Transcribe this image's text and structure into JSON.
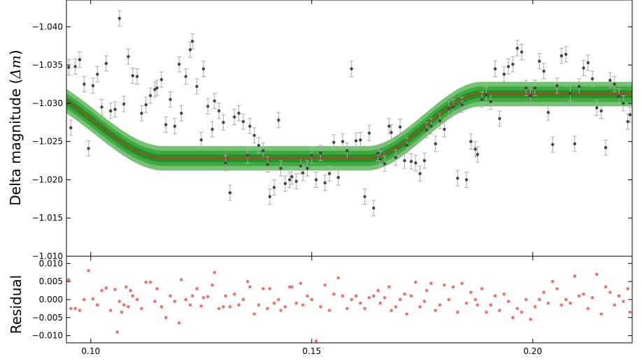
{
  "chart_data": [
    {
      "type": "scatter",
      "ylabel_main": "Delta magnitude (",
      "ylabel_math": "Δm",
      "ylabel_close": ")",
      "xlim": [
        0.0945,
        0.2225
      ],
      "ylim": [
        -1.01,
        -1.0435
      ],
      "y_inverted": true,
      "y_ticks": [
        -1.01,
        -1.015,
        -1.02,
        -1.025,
        -1.03,
        -1.035,
        -1.04
      ],
      "y_tick_labels": [
        "−1.010",
        "−1.015",
        "−1.020",
        "−1.025",
        "−1.030",
        "−1.035",
        "−1.040"
      ],
      "colors": {
        "points": "#444444",
        "errorbars": "#aaaaaa",
        "model": "#c0392b",
        "band_inner": "#1e8c1e",
        "band_mid": "#3aa33a",
        "band_outer": "#5cb85c"
      },
      "model": {
        "baseline_left": -1.0322,
        "baseline_right": -1.0312,
        "depth_level": -1.0228,
        "ingress": [
          0.0855,
          0.1165
        ],
        "egress": [
          0.1625,
          0.1885
        ],
        "band_half_widths": [
          0.0005,
          0.001,
          0.0016
        ]
      },
      "series": [
        {
          "x": [
            0.095,
            0.0955,
            0.0965,
            0.0975,
            0.0985,
            0.0995,
            0.1005,
            0.1015,
            0.1025,
            0.1035,
            0.1045,
            0.1055,
            0.1065,
            0.1075,
            0.1085,
            0.1095,
            0.1105,
            0.1115,
            0.1125,
            0.1135,
            0.1145,
            0.115,
            0.116,
            0.117,
            0.118,
            0.119,
            0.12,
            0.1205,
            0.1215,
            0.1225,
            0.123,
            0.124,
            0.125,
            0.1255,
            0.1265,
            0.1275,
            0.128,
            0.129,
            0.13,
            0.1305,
            0.1315,
            0.1325,
            0.1335,
            0.1345,
            0.1355,
            0.136,
            0.137,
            0.138,
            0.139,
            0.14,
            0.1405,
            0.1415,
            0.1425,
            0.143,
            0.144,
            0.145,
            0.1455,
            0.1465,
            0.1475,
            0.148,
            0.149,
            0.15,
            0.151,
            0.152,
            0.153,
            0.154,
            0.155,
            0.156,
            0.157,
            0.158,
            0.159,
            0.16,
            0.161,
            0.162,
            0.163,
            0.164,
            0.165,
            0.1655,
            0.1665,
            0.1675,
            0.168,
            0.169,
            0.17,
            0.171,
            0.1715,
            0.1725,
            0.1735,
            0.1745,
            0.1755,
            0.176,
            0.177,
            0.178,
            0.179,
            0.18,
            0.181,
            0.182,
            0.183,
            0.184,
            0.185,
            0.186,
            0.187,
            0.1875,
            0.1885,
            0.1895,
            0.1905,
            0.1915,
            0.1925,
            0.1935,
            0.1945,
            0.1955,
            0.1965,
            0.1975,
            0.1985,
            0.1995,
            0.2005,
            0.2015,
            0.2025,
            0.2035,
            0.2045,
            0.2055,
            0.2065,
            0.2075,
            0.2085,
            0.2095,
            0.2105,
            0.2115,
            0.2125,
            0.2135,
            0.2145,
            0.2155,
            0.2165,
            0.2175,
            0.2185,
            0.2195,
            0.2205,
            0.2215,
            0.222
          ],
          "y": [
            -1.0347,
            -1.0268,
            -1.0348,
            -1.0357,
            -1.0325,
            -1.0241,
            -1.0323,
            -1.0338,
            -1.0295,
            -1.0352,
            -1.029,
            -1.0292,
            -1.0411,
            -1.0299,
            -1.0361,
            -1.0336,
            -1.0335,
            -1.0287,
            -1.0298,
            -1.031,
            -1.0318,
            -1.032,
            -1.0331,
            -1.0272,
            -1.0305,
            -1.027,
            -1.0351,
            -1.0287,
            -1.0335,
            -1.037,
            -1.0381,
            -1.0322,
            -1.0252,
            -1.0345,
            -1.0296,
            -1.0266,
            -1.0303,
            -1.029,
            -1.0275,
            -1.0222,
            -1.0183,
            -1.0282,
            -1.0287,
            -1.0276,
            -1.0232,
            -1.027,
            -1.0258,
            -1.0245,
            -1.0238,
            -1.022,
            -1.0178,
            -1.019,
            -1.0278,
            -1.0215,
            -1.0195,
            -1.02,
            -1.0204,
            -1.0198,
            -1.0218,
            -1.0209,
            -1.0215,
            -1.0232,
            -1.02,
            -1.0235,
            -1.0196,
            -1.0208,
            -1.0249,
            -1.0203,
            -1.025,
            -1.0238,
            -1.0345,
            -1.0251,
            -1.0252,
            -1.0178,
            -1.0261,
            -1.0163,
            -1.0235,
            -1.0227,
            -1.0221,
            -1.027,
            -1.0262,
            -1.0229,
            -1.0269,
            -1.0225,
            -1.0245,
            -1.0224,
            -1.0222,
            -1.0208,
            -1.0225,
            -1.0265,
            -1.027,
            -1.0247,
            -1.0277,
            -1.0266,
            -1.0293,
            -1.0295,
            -1.0202,
            -1.0298,
            -1.02,
            -1.025,
            -1.024,
            -1.0233,
            -1.0305,
            -1.0311,
            -1.0302,
            -1.0345,
            -1.028,
            -1.0338,
            -1.0348,
            -1.0351,
            -1.0372,
            -1.0367,
            -1.032,
            -1.031,
            -1.032,
            -1.0355,
            -1.0342,
            -1.0288,
            -1.0246,
            -1.0323,
            -1.0362,
            -1.0364,
            -1.0313,
            -1.0247,
            -1.0322,
            -1.0346,
            -1.0353,
            -1.0332,
            -1.0294,
            -1.029,
            -1.0242,
            -1.033,
            -1.0325,
            -1.0309,
            -1.03,
            -1.0276,
            -1.0285
          ]
        }
      ]
    },
    {
      "type": "scatter",
      "ylabel": "Residual",
      "xlim": [
        0.0945,
        0.2225
      ],
      "ylim": [
        -0.012,
        0.012
      ],
      "x_ticks": [
        0.1,
        0.15,
        0.2
      ],
      "x_tick_labels": [
        "0.10",
        "0.15",
        "0.20"
      ],
      "y_ticks": [
        0.01,
        0.005,
        0.0,
        -0.005,
        -0.01
      ],
      "y_tick_labels": [
        "0.010",
        "0.005",
        "0.000",
        "−0.005",
        "−0.010"
      ],
      "colors": {
        "points": "#f07070"
      },
      "series": [
        {
          "x": [
            0.095,
            0.0955,
            0.0965,
            0.0975,
            0.0985,
            0.0995,
            0.1005,
            0.1015,
            0.1025,
            0.1035,
            0.1045,
            0.1055,
            0.106,
            0.1065,
            0.107,
            0.1075,
            0.108,
            0.1085,
            0.109,
            0.1095,
            0.1105,
            0.1115,
            0.1125,
            0.1135,
            0.1145,
            0.115,
            0.116,
            0.117,
            0.118,
            0.119,
            0.12,
            0.1205,
            0.1215,
            0.1225,
            0.123,
            0.124,
            0.125,
            0.1255,
            0.1265,
            0.1275,
            0.128,
            0.129,
            0.13,
            0.1305,
            0.1315,
            0.1325,
            0.1335,
            0.1345,
            0.1355,
            0.136,
            0.137,
            0.138,
            0.139,
            0.14,
            0.1405,
            0.1415,
            0.1425,
            0.143,
            0.144,
            0.145,
            0.1455,
            0.1465,
            0.1475,
            0.148,
            0.149,
            0.15,
            0.151,
            0.152,
            0.153,
            0.154,
            0.155,
            0.156,
            0.157,
            0.158,
            0.159,
            0.16,
            0.161,
            0.162,
            0.163,
            0.164,
            0.165,
            0.1655,
            0.1665,
            0.1675,
            0.168,
            0.169,
            0.17,
            0.171,
            0.1715,
            0.1725,
            0.1735,
            0.1745,
            0.1755,
            0.176,
            0.177,
            0.178,
            0.179,
            0.18,
            0.181,
            0.182,
            0.183,
            0.184,
            0.185,
            0.186,
            0.187,
            0.1875,
            0.1885,
            0.1895,
            0.1905,
            0.1915,
            0.1925,
            0.1935,
            0.1945,
            0.1955,
            0.1965,
            0.1975,
            0.1985,
            0.1995,
            0.2005,
            0.2015,
            0.2025,
            0.2035,
            0.2045,
            0.2055,
            0.2065,
            0.2075,
            0.2085,
            0.2095,
            0.2105,
            0.2115,
            0.2125,
            0.2135,
            0.2145,
            0.2155,
            0.2165,
            0.2175,
            0.2185,
            0.2195,
            0.2205,
            0.2215,
            0.222
          ],
          "y": [
            0.0055,
            -0.0025,
            -0.0025,
            -0.003,
            0.0,
            0.008,
            0.0002,
            -0.0015,
            0.0025,
            0.0032,
            -0.003,
            0.0028,
            -0.009,
            -0.0005,
            -0.0035,
            -0.0015,
            0.0035,
            -0.002,
            0.0025,
            0.001,
            0.0,
            -0.0025,
            0.0048,
            0.0048,
            -0.0005,
            0.003,
            -0.002,
            -0.005,
            0.001,
            -0.0005,
            -0.0065,
            0.0055,
            0.0,
            -0.0015,
            0.001,
            0.003,
            -0.0018,
            0.0005,
            0.0008,
            0.004,
            0.0075,
            -0.0025,
            -0.002,
            0.001,
            -0.002,
            0.0015,
            -0.0015,
            0.0,
            0.005,
            0.0035,
            -0.004,
            -0.0015,
            0.003,
            -0.0025,
            0.003,
            -0.001,
            0.0,
            -0.003,
            -0.002,
            0.0035,
            0.0035,
            -0.001,
            0.0045,
            -0.0015,
            0.001,
            0.0,
            -0.0115,
            -0.002,
            0.004,
            -0.003,
            0.0015,
            0.006,
            0.001,
            -0.0025,
            0.0,
            0.001,
            -0.001,
            -0.0025,
            0.0005,
            0.001,
            0.0025,
            -0.001,
            0.0005,
            0.0035,
            -0.003,
            -0.002,
            0.0,
            0.0015,
            -0.004,
            0.001,
            0.0048,
            -0.002,
            -0.0005,
            0.0025,
            0.0045,
            -0.003,
            -0.0015,
            0.004,
            0.0,
            0.0035,
            -0.0035,
            0.0045,
            -0.001,
            0.002,
            0.0,
            -0.0015,
            0.003,
            -0.0035,
            -0.0015,
            0.001,
            -0.003,
            0.0015,
            -0.0005,
            -0.005,
            -0.0025,
            -0.0035,
            0.0,
            -0.0055,
            -0.002,
            0.0,
            0.002,
            -0.001,
            0.005,
            0.003,
            -0.0015,
            0.0,
            -0.001,
            0.0065,
            0.001,
            0.0015,
            -0.0025,
            0.0005,
            0.007,
            -0.004,
            0.0035,
            0.002,
            -0.0015,
            0.001,
            -0.0005,
            0.003,
            -0.0035
          ]
        }
      ]
    }
  ]
}
